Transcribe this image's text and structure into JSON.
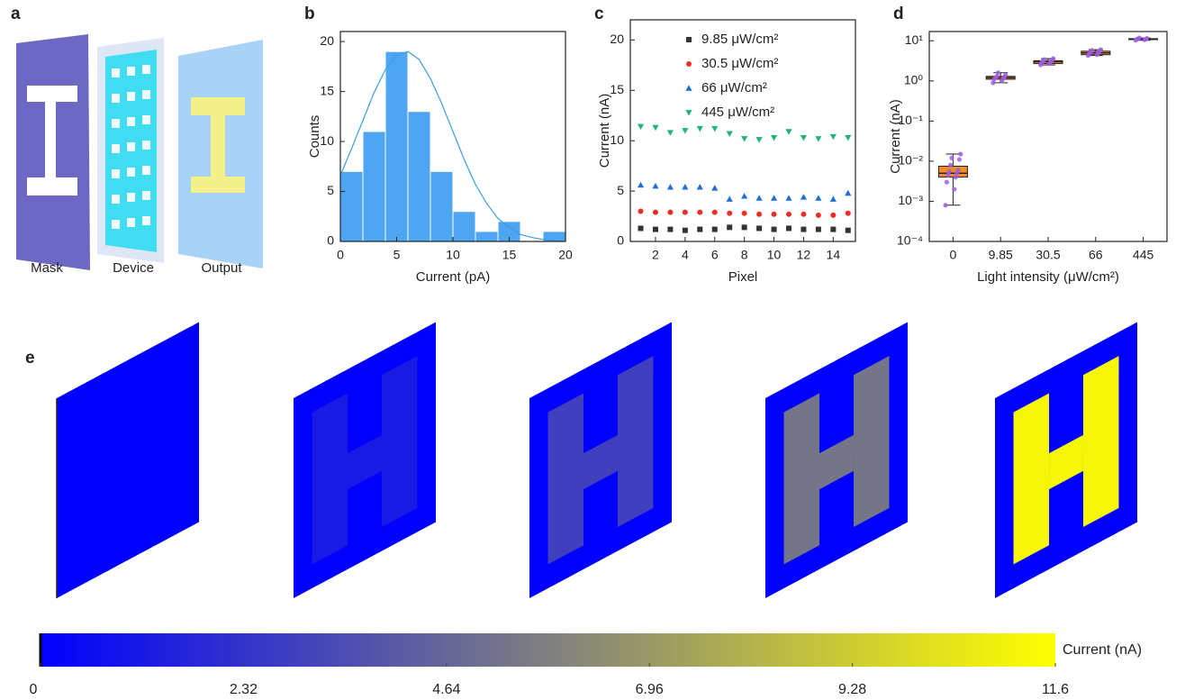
{
  "panel_a": {
    "label": "a",
    "captions": [
      "Mask",
      "Device",
      "Output"
    ]
  },
  "chart_data": [
    {
      "type": "histogram",
      "label": "b",
      "x_label": "Current (pA)",
      "y_label": "Counts",
      "bins": [
        0,
        2,
        4,
        6,
        8,
        10,
        12,
        14,
        16,
        18,
        20
      ],
      "counts": [
        7,
        11,
        19,
        13,
        7,
        3,
        1,
        2,
        0,
        1
      ],
      "color": "#4ea5f2",
      "fit": {
        "x": [
          0,
          1,
          2,
          3,
          4,
          5,
          6,
          7,
          8,
          9,
          10,
          11,
          12,
          13,
          14,
          15,
          16,
          17,
          18,
          19,
          20
        ],
        "values": [
          6.6,
          9.3,
          12.1,
          14.9,
          17.2,
          18.6,
          19.0,
          18.2,
          16.3,
          13.8,
          11.0,
          8.2,
          5.7,
          3.8,
          2.3,
          1.4,
          0.7,
          0.4,
          0.2,
          0.1,
          0.0
        ],
        "color": "#3a9ee6"
      },
      "xlim": [
        0,
        20
      ],
      "xticks": [
        0,
        5,
        10,
        15,
        20
      ],
      "ylim": [
        0,
        21
      ],
      "yticks": [
        0,
        5,
        10,
        15,
        20
      ]
    },
    {
      "type": "scatter",
      "label": "c",
      "x_label": "Pixel",
      "y_label": "Current (nA)",
      "x": [
        1,
        2,
        3,
        4,
        5,
        6,
        7,
        8,
        9,
        10,
        11,
        12,
        13,
        14,
        15
      ],
      "series": [
        {
          "name": "9.85 μW/cm²",
          "color": "#333333",
          "marker": "square",
          "values": [
            1.3,
            1.2,
            1.2,
            1.1,
            1.2,
            1.2,
            1.4,
            1.4,
            1.3,
            1.2,
            1.3,
            1.2,
            1.2,
            1.2,
            1.1
          ]
        },
        {
          "name": "30.5 μW/cm²",
          "color": "#ee2d24",
          "marker": "circle",
          "values": [
            3.0,
            2.9,
            2.9,
            2.9,
            2.9,
            2.9,
            2.8,
            2.8,
            2.7,
            2.7,
            2.7,
            2.7,
            2.6,
            2.6,
            2.8
          ]
        },
        {
          "name": "66 μW/cm²",
          "color": "#1f6fd6",
          "marker": "triangle-up",
          "values": [
            5.6,
            5.5,
            5.4,
            5.4,
            5.4,
            5.3,
            4.2,
            4.5,
            4.3,
            4.3,
            4.3,
            4.4,
            4.3,
            4.2,
            4.8
          ]
        },
        {
          "name": "445 μW/cm²",
          "color": "#1fb574",
          "marker": "triangle-down",
          "values": [
            11.4,
            11.3,
            10.8,
            11.0,
            11.2,
            11.2,
            10.7,
            10.2,
            10.1,
            10.3,
            10.9,
            10.3,
            10.2,
            10.4,
            10.3
          ]
        }
      ],
      "xlim": [
        0.3,
        15.5
      ],
      "xticks": [
        2,
        4,
        6,
        8,
        10,
        12,
        14
      ],
      "ylim": [
        0,
        22
      ],
      "yticks": [
        0,
        5,
        10,
        15,
        20
      ],
      "legend": "top-right"
    },
    {
      "type": "box",
      "label": "d",
      "x_label": "Light intensity (μW/cm²)",
      "y_label": "Current (nA)",
      "categories": [
        "0",
        "9.85",
        "30.5",
        "66",
        "445"
      ],
      "log_y": true,
      "color": "#f28a26",
      "point_color": "#9d5ce0",
      "boxes": [
        {
          "min": 0.0008,
          "q1": 0.004,
          "median": 0.005,
          "q3": 0.0075,
          "max": 0.015,
          "points": [
            0.0008,
            0.002,
            0.003,
            0.004,
            0.0045,
            0.005,
            0.0055,
            0.006,
            0.008,
            0.011,
            0.012,
            0.015
          ]
        },
        {
          "min": 0.9,
          "q1": 1.1,
          "median": 1.2,
          "q3": 1.3,
          "max": 1.6,
          "points": [
            0.9,
            1.0,
            1.1,
            1.15,
            1.2,
            1.25,
            1.3,
            1.4,
            1.6
          ]
        },
        {
          "min": 2.5,
          "q1": 2.7,
          "median": 3.0,
          "q3": 3.2,
          "max": 3.6,
          "points": [
            2.5,
            2.7,
            2.9,
            3.0,
            3.1,
            3.2,
            3.4,
            3.6
          ]
        },
        {
          "min": 4.3,
          "q1": 4.5,
          "median": 5.0,
          "q3": 5.5,
          "max": 6.0,
          "points": [
            4.3,
            4.5,
            4.8,
            5.0,
            5.2,
            5.5,
            5.8,
            6.0
          ]
        },
        {
          "min": 10.3,
          "q1": 10.7,
          "median": 11.0,
          "q3": 11.3,
          "max": 11.8,
          "points": [
            10.3,
            10.6,
            10.9,
            11.0,
            11.2,
            11.5,
            11.8
          ]
        }
      ],
      "ylim": [
        0.0001,
        17
      ],
      "yticks": [
        {
          "value": 0.0001,
          "label": "10⁻⁴"
        },
        {
          "value": 0.001,
          "label": "10⁻³"
        },
        {
          "value": 0.01,
          "label": "10⁻²"
        },
        {
          "value": 0.1,
          "label": "10⁻¹"
        },
        {
          "value": 1,
          "label": "10⁰"
        },
        {
          "value": 10,
          "label": "10¹"
        }
      ]
    },
    {
      "type": "heatmap",
      "label": "e",
      "values": [
        [
          0.005,
          0.005
        ],
        [
          0.005,
          1.2
        ],
        [
          0.005,
          2.9
        ],
        [
          0.005,
          5.3
        ],
        [
          0.005,
          11.2
        ]
      ],
      "clim": [
        0,
        11.6
      ],
      "cticks": [
        0,
        2.32,
        4.64,
        6.96,
        9.28,
        11.6
      ],
      "clabel": "Current (nA)",
      "cmap": [
        "#0000ff",
        "#ffff00"
      ]
    }
  ]
}
